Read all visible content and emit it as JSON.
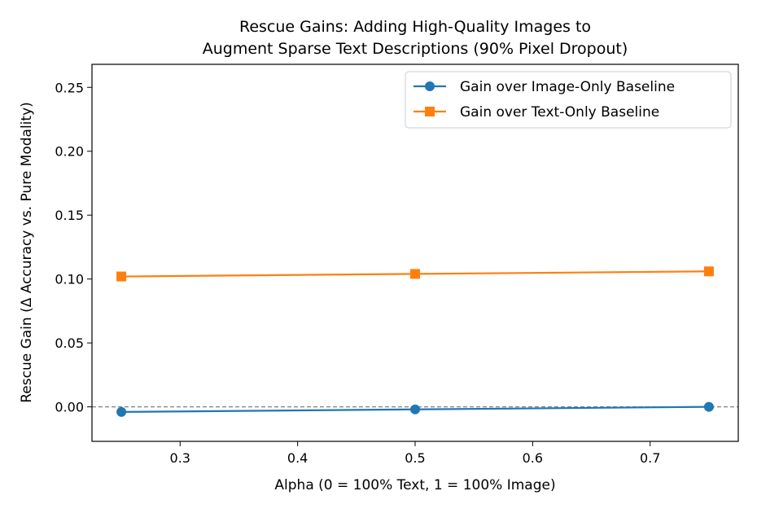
{
  "chart_data": {
    "type": "line",
    "title_lines": [
      "Rescue Gains: Adding High-Quality Images to",
      "Augment Sparse Text Descriptions (90% Pixel Dropout)"
    ],
    "xlabel": "Alpha (0 = 100% Text, 1 = 100% Image)",
    "ylabel": "Rescue Gain (Δ Accuracy vs. Pure Modality)",
    "xlim": [
      0.225,
      0.775
    ],
    "ylim": [
      -0.027,
      0.268
    ],
    "xticks": [
      0.3,
      0.4,
      0.5,
      0.6,
      0.7
    ],
    "xtick_labels": [
      "0.3",
      "0.4",
      "0.5",
      "0.6",
      "0.7"
    ],
    "yticks": [
      0.0,
      0.05,
      0.1,
      0.15,
      0.2,
      0.25
    ],
    "ytick_labels": [
      "0.00",
      "0.05",
      "0.10",
      "0.15",
      "0.20",
      "0.25"
    ],
    "reference_line": {
      "y": 0.0,
      "style": "dashed",
      "color": "#808080"
    },
    "grid": false,
    "legend_position": "top-right",
    "series": [
      {
        "name": "Gain over Image-Only Baseline",
        "marker": "circle",
        "color": "#1f77b4",
        "x": [
          0.25,
          0.5,
          0.75
        ],
        "y": [
          -0.004,
          -0.002,
          0.0
        ]
      },
      {
        "name": "Gain over Text-Only Baseline",
        "marker": "square",
        "color": "#ff7f0e",
        "x": [
          0.25,
          0.5,
          0.75
        ],
        "y": [
          0.102,
          0.104,
          0.106
        ]
      }
    ]
  }
}
